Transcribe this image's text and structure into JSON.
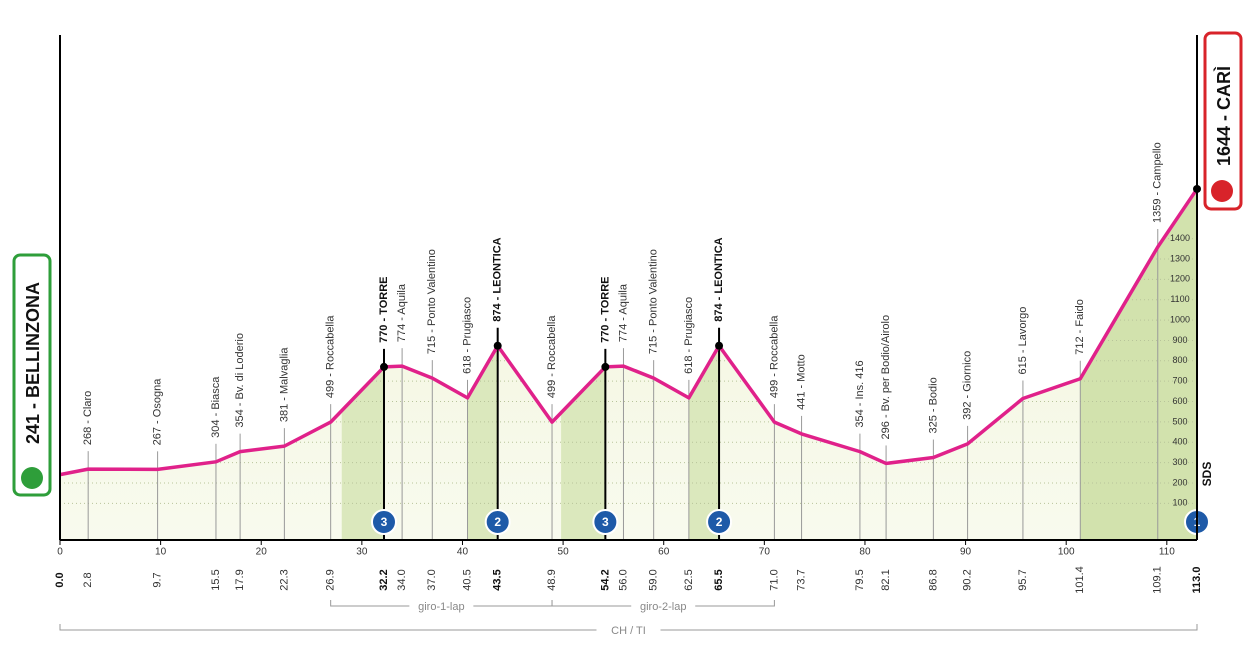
{
  "chart_data": {
    "type": "area",
    "start": "241 - BELLINZONA",
    "finish": "1644 - CARÌ",
    "sprint_label": "SDS",
    "x": [
      0,
      2.8,
      9.7,
      15.5,
      17.9,
      22.3,
      26.9,
      32.2,
      34.0,
      37.0,
      40.5,
      43.5,
      48.9,
      54.2,
      56.0,
      59.0,
      62.5,
      65.5,
      71.0,
      73.7,
      79.5,
      82.1,
      86.8,
      90.2,
      95.7,
      101.4,
      109.1,
      113.0
    ],
    "km_labels": [
      "0.0",
      "2.8",
      "9.7",
      "15.5",
      "17.9",
      "22.3",
      "26.9",
      "32.2",
      "34.0",
      "37.0",
      "40.5",
      "43.5",
      "48.9",
      "54.2",
      "56.0",
      "59.0",
      "62.5",
      "65.5",
      "71.0",
      "73.7",
      "79.5",
      "82.1",
      "86.8",
      "90.2",
      "95.7",
      "101.4",
      "109.1",
      "113.0"
    ],
    "values": [
      241,
      268,
      267,
      304,
      354,
      381,
      499,
      770,
      774,
      715,
      618,
      874,
      499,
      770,
      774,
      715,
      618,
      874,
      499,
      441,
      354,
      296,
      325,
      392,
      615,
      712,
      1359,
      1644
    ],
    "waypoints": [
      null,
      "268 - Claro",
      "267 - Osogna",
      "304 - Biasca",
      "354 - Bv. di Loderio",
      "381 - Malvaglia",
      "499 - Roccabella",
      "770 - TORRE",
      "774 - Aquila",
      "715 - Ponto Valentino",
      "618 - Prugiasco",
      "874 - LEONTICA",
      "499 - Roccabella",
      "770 - TORRE",
      "774 - Aquila",
      "715 - Ponto Valentino",
      "618 - Prugiasco",
      "874 - LEONTICA",
      "499 - Roccabella",
      "441 - Motto",
      "354 - Ins. 416",
      "296 - Bv. per Bodio/Airolo",
      "325 - Bodio",
      "392 - Giornico",
      "615 - Lavorgo",
      "712 - Faido",
      "1359 - Campello",
      null
    ],
    "color": "#e0218a",
    "climbs": [
      {
        "category": "3",
        "from": 28,
        "to": 32.2
      },
      {
        "category": "2",
        "from": 40.5,
        "to": 43.5
      },
      {
        "category": "3",
        "from": 49.8,
        "to": 54.2
      },
      {
        "category": "2",
        "from": 62.5,
        "to": 65.5
      },
      {
        "category": "1",
        "from": 101.4,
        "to": 113.0
      }
    ],
    "laps": [
      {
        "label": "giro-1-lap",
        "from": 26.9,
        "to": 48.9
      },
      {
        "label": "giro-2-lap",
        "from": 48.9,
        "to": 71.0
      }
    ],
    "region": {
      "label": "CH / TI",
      "from": 0,
      "to": 113.0
    },
    "xlim": [
      0,
      113.0
    ],
    "xticks": [
      0,
      10,
      20,
      30,
      40,
      50,
      60,
      70,
      80,
      90,
      100,
      110
    ],
    "ylim": [
      -80,
      2400
    ],
    "yticks": [
      100,
      200,
      300,
      400,
      500,
      600,
      700,
      800,
      900,
      1000,
      1100,
      1200,
      1300,
      1400
    ],
    "grid": true
  }
}
